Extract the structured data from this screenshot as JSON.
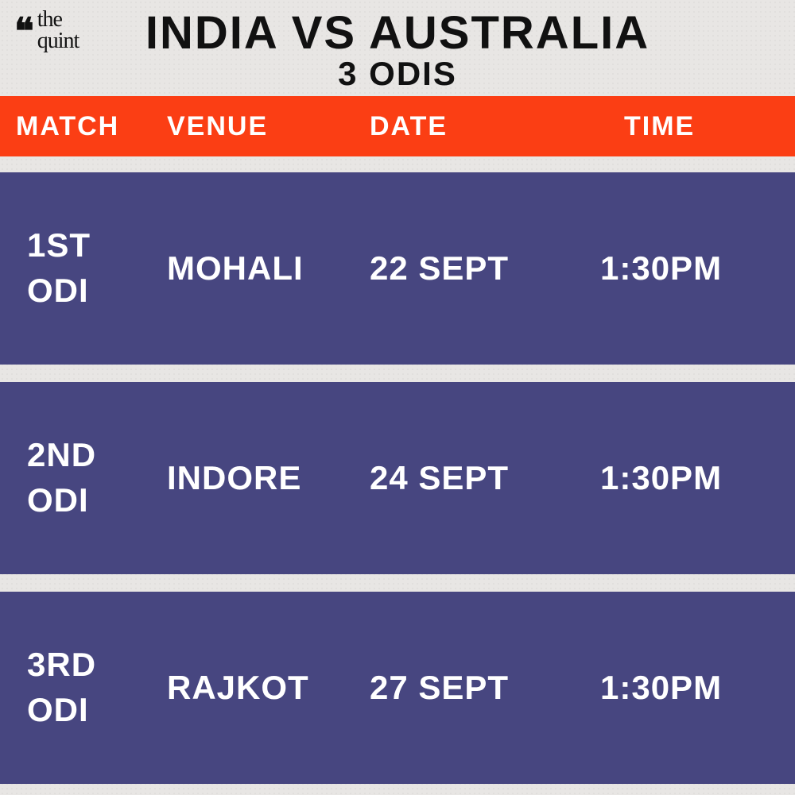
{
  "logo": {
    "line1": "the",
    "line2": "quint"
  },
  "title": "INDIA VS AUSTRALIA",
  "subtitle": "3 ODIS",
  "headers": {
    "match": "MATCH",
    "venue": "VENUE",
    "date": "DATE",
    "time": "TIME"
  },
  "colors": {
    "header_bg": "#fb3e14",
    "row_bg": "#474680",
    "page_bg": "#e8e6e4",
    "text_dark": "#111111",
    "text_light": "#ffffff"
  },
  "matches": [
    {
      "match_line1": "1ST",
      "match_line2": "ODI",
      "venue": "MOHALI",
      "date": "22 SEPT",
      "time": "1:30PM"
    },
    {
      "match_line1": "2ND",
      "match_line2": "ODI",
      "venue": "INDORE",
      "date": "24 SEPT",
      "time": "1:30PM"
    },
    {
      "match_line1": "3RD",
      "match_line2": "ODI",
      "venue": "RAJKOT",
      "date": "27 SEPT",
      "time": "1:30PM"
    }
  ]
}
